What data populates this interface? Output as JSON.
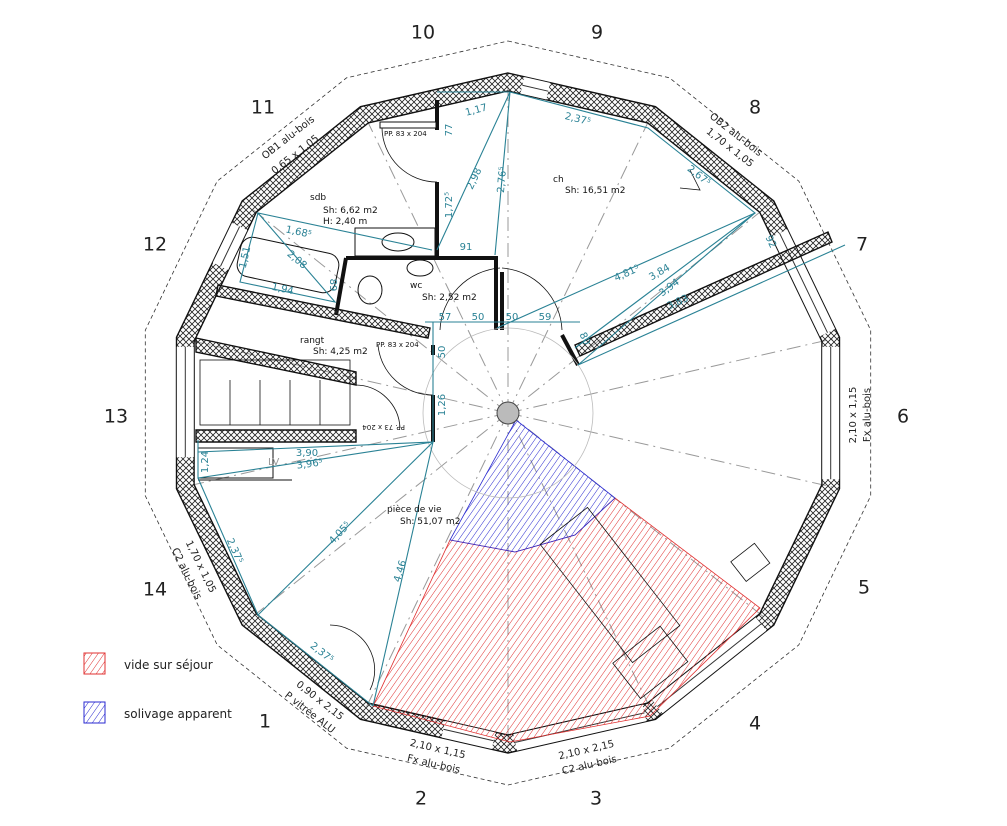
{
  "sides": [
    "1",
    "2",
    "3",
    "4",
    "5",
    "6",
    "7",
    "8",
    "9",
    "10",
    "11",
    "12",
    "13",
    "14"
  ],
  "rooms": {
    "sdb": {
      "name": "sdb",
      "area": "Sh: 6,62 m2",
      "height": "H: 2,40 m"
    },
    "ch": {
      "name": "ch",
      "area": "Sh: 16,51 m2"
    },
    "wc": {
      "name": "wc",
      "area": "Sh: 2,52 m2"
    },
    "rangt": {
      "name": "rangt",
      "area": "Sh: 4,25 m2"
    },
    "piece": {
      "name": "pièce de vie",
      "area": "Sh: 51,07 m2"
    },
    "lv": "LV"
  },
  "doors": {
    "sdb": "PP. 83 x 204",
    "rangt": "PP. 83 x 204",
    "stair": "PP. 73 x 204"
  },
  "windows": {
    "ob1": {
      "type": "OB1 alu-bois",
      "size": "0,65 x 1,05"
    },
    "ob2": {
      "type": "OB2 alu-bois",
      "size": "1,70 x 1,05"
    },
    "side6": {
      "size": "2,10 x 1,15",
      "type": "Fx alu-bois"
    },
    "side14": {
      "size": "1,70 x 1,05",
      "type": "C2 alu-bois"
    },
    "side1": {
      "size": "0,90 x 2,15",
      "type": "P vitrée ALU"
    },
    "side2": {
      "size": "2,10 x 1,15",
      "type": "Fx alu-bois"
    },
    "side3": {
      "size": "2,10 x 2,15",
      "type": "C2 alu-bois"
    }
  },
  "dimensions": [
    "1,17",
    "77",
    "1,72⁵",
    "2,98",
    "2,76⁵",
    "91",
    "2,37⁵",
    "2,67⁵",
    "92",
    "4,81⁵",
    "3,84",
    "3,94",
    "3,83",
    "80",
    "59",
    "50",
    "50",
    "57",
    "1,68⁵",
    "2,08",
    "1,94",
    "1,51",
    "89",
    "50",
    "1,26",
    "3,90",
    "3,96⁵",
    "1,24",
    "4,05⁵",
    "4,46",
    "2,37⁵",
    "2,37⁵"
  ],
  "legend": [
    {
      "label": "vide sur séjour",
      "color": "#e03030"
    },
    {
      "label": "solivage apparent",
      "color": "#2a2ad0"
    }
  ],
  "colors": {
    "dimension": "#2a8295",
    "wall": "#111111"
  }
}
